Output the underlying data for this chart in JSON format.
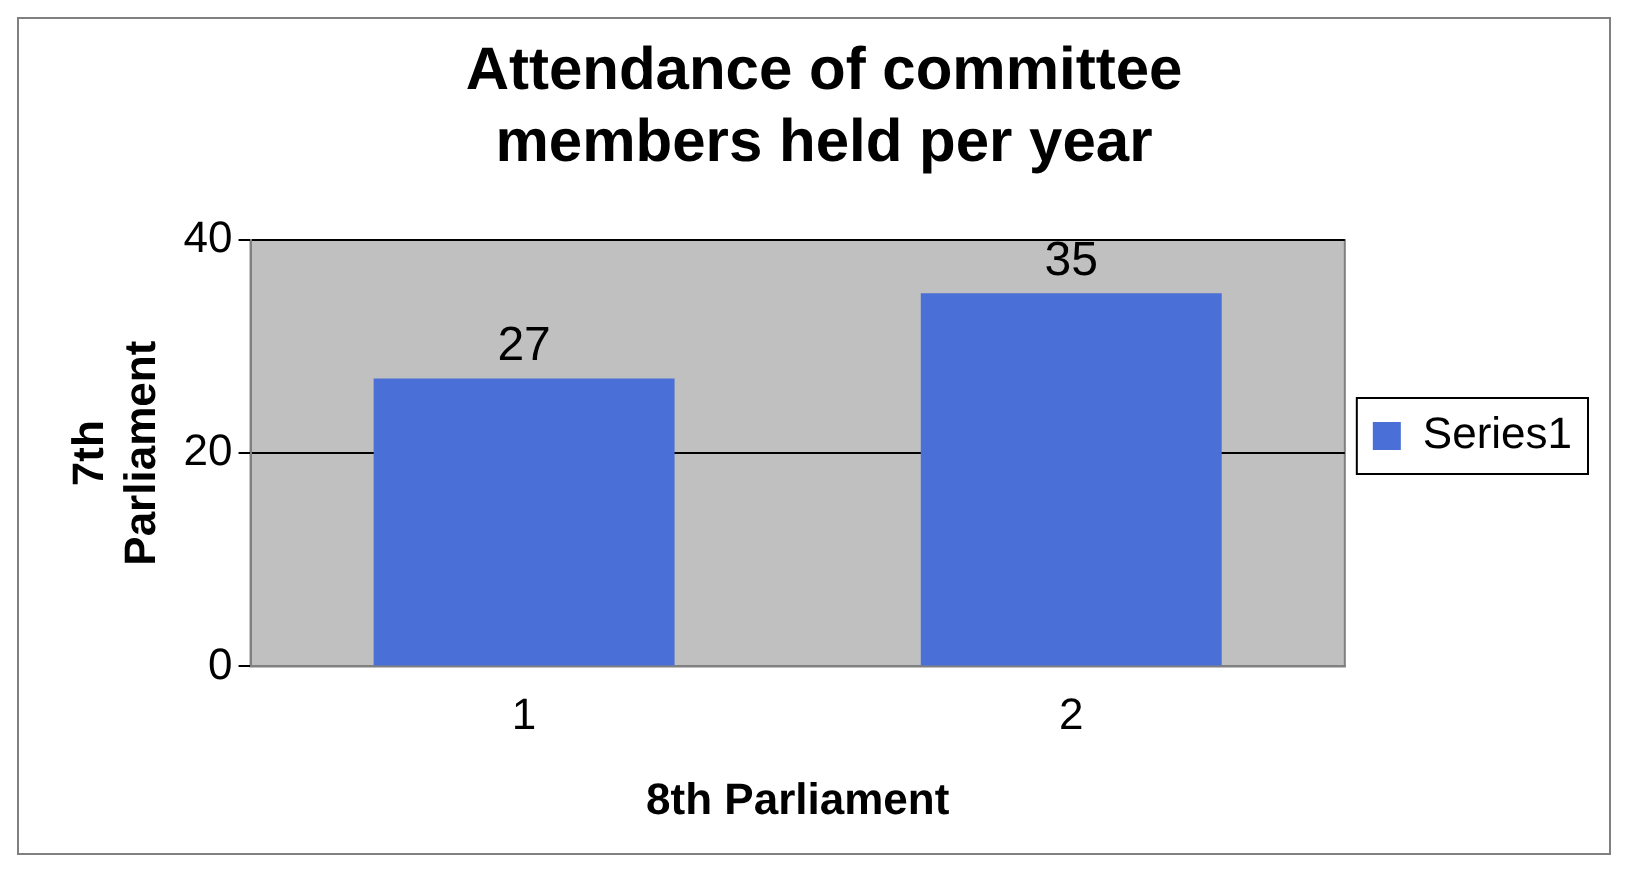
{
  "chart_data": {
    "type": "bar",
    "title": "Attendance of committee members held per year",
    "xlabel": "8th Parliament",
    "ylabel": "7th Parliament",
    "categories": [
      "1",
      "2"
    ],
    "series": [
      {
        "name": "Series1",
        "color": "#4a6fd6",
        "values": [
          27,
          35
        ]
      }
    ],
    "ylim": [
      0,
      40
    ],
    "yticks": [
      0,
      20,
      40
    ],
    "grid": "y",
    "legend": "right",
    "data_labels": true
  }
}
